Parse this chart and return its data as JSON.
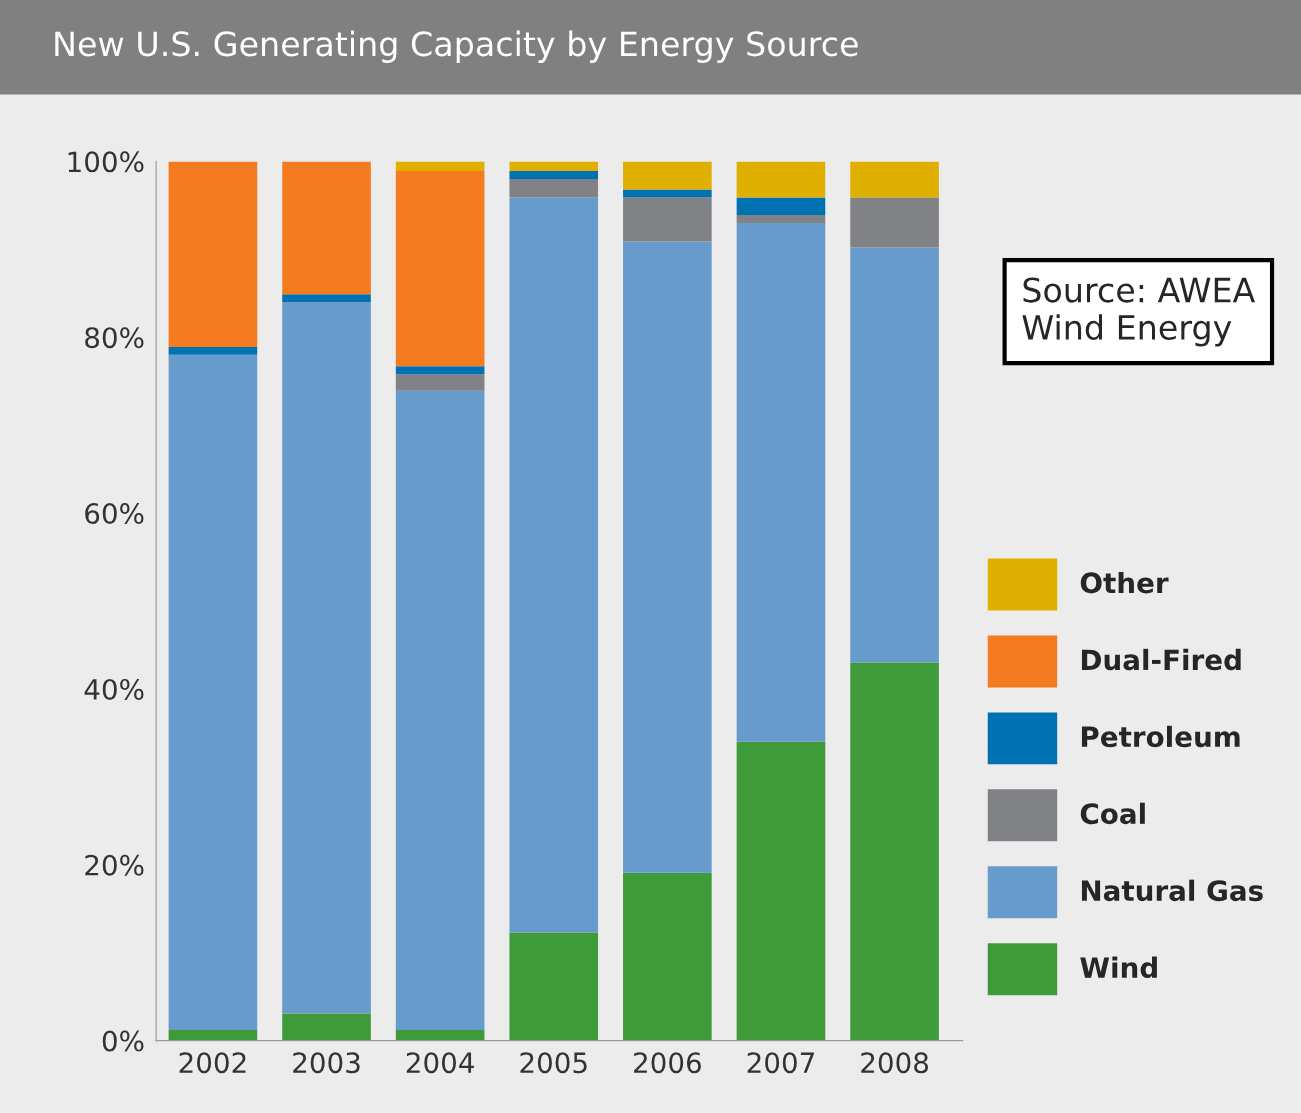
{
  "chart_data": {
    "type": "bar",
    "title": "New U.S. Generating Capacity by Energy Source",
    "stacked": true,
    "categories": [
      "2002",
      "2003",
      "2004",
      "2005",
      "2006",
      "2007",
      "2008"
    ],
    "series": [
      {
        "name": "Wind",
        "color": "#3f9a3a",
        "values": [
          1.2,
          3.1,
          1.2,
          12.3,
          19.1,
          34.0,
          43.0
        ]
      },
      {
        "name": "Natural Gas",
        "color": "#679bcb",
        "values": [
          76.8,
          80.9,
          72.7,
          83.6,
          71.8,
          59.0,
          47.2
        ]
      },
      {
        "name": "Coal",
        "color": "#808285",
        "values": [
          0,
          0,
          1.9,
          2.1,
          5.0,
          0.9,
          5.7
        ]
      },
      {
        "name": "Petroleum",
        "color": "#0072b2",
        "values": [
          0.9,
          0.9,
          0.9,
          0.9,
          0.9,
          2.0,
          0
        ]
      },
      {
        "name": "Dual-Fired",
        "color": "#f47b20",
        "values": [
          21.1,
          15.1,
          22.2,
          0,
          0,
          0,
          0
        ]
      },
      {
        "name": "Other",
        "color": "#e0b000",
        "values": [
          0,
          0,
          1.1,
          1.1,
          3.2,
          4.1,
          4.1
        ]
      }
    ],
    "ylim": [
      0,
      100
    ],
    "yticks": [
      {
        "value": 0,
        "label": "0%"
      },
      {
        "value": 20,
        "label": "20%"
      },
      {
        "value": 40,
        "label": "40%"
      },
      {
        "value": 60,
        "label": "60%"
      },
      {
        "value": 80,
        "label": "80%"
      },
      {
        "value": 100,
        "label": "100%"
      }
    ],
    "grid": false,
    "legend": "right",
    "annotations": [
      "Source: AWEA\nWind Energy"
    ]
  }
}
